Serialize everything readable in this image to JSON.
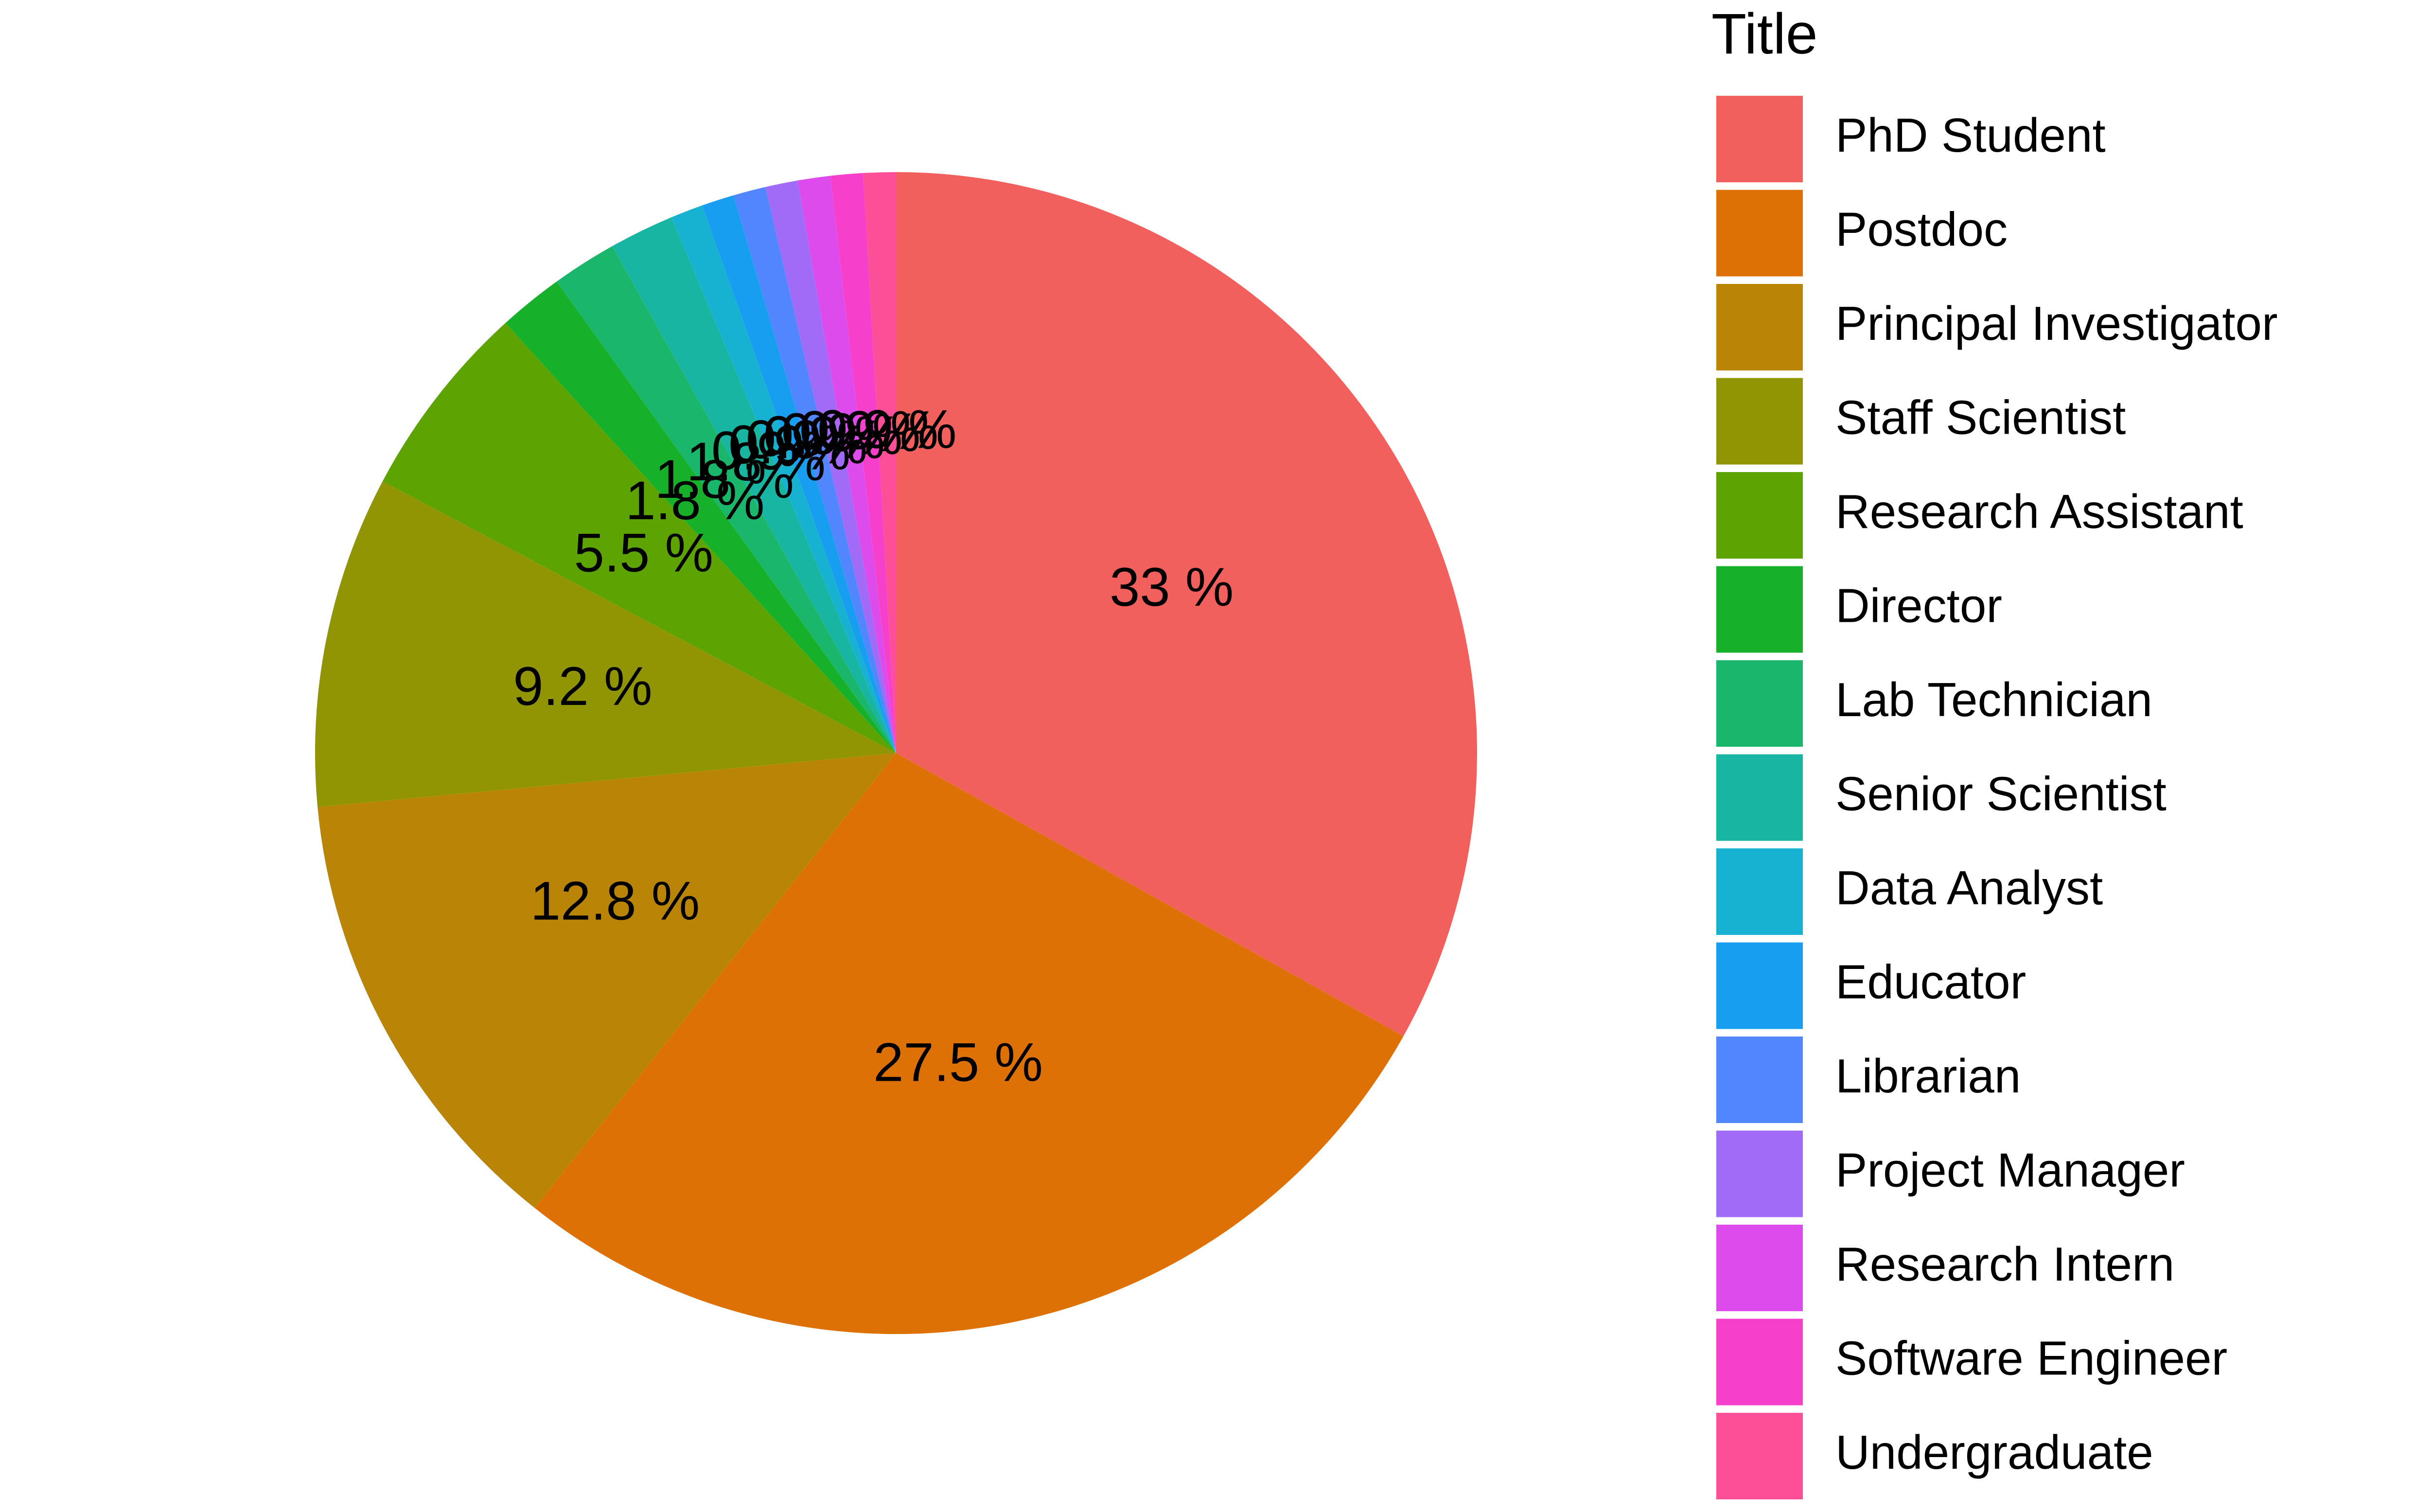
{
  "chart_data": {
    "type": "pie",
    "legend_title": "Title",
    "legend_position": "right",
    "start_angle_deg": 0,
    "direction": "clockwise",
    "units": "%",
    "slices": [
      {
        "name": "PhD Student",
        "value": 33.0,
        "label": "33 %",
        "color": "#F2605E"
      },
      {
        "name": "Postdoc",
        "value": 27.5,
        "label": "27.5 %",
        "color": "#DE7105"
      },
      {
        "name": "Principal Investigator",
        "value": 12.8,
        "label": "12.8 %",
        "color": "#BA8506"
      },
      {
        "name": "Staff Scientist",
        "value": 9.2,
        "label": "9.2 %",
        "color": "#929503"
      },
      {
        "name": "Research Assistant",
        "value": 5.5,
        "label": "5.5 %",
        "color": "#5DA402"
      },
      {
        "name": "Director",
        "value": 1.8,
        "label": "1.8 %",
        "color": "#17B02A"
      },
      {
        "name": "Lab Technician",
        "value": 1.8,
        "label": "1.8 %",
        "color": "#19B66C"
      },
      {
        "name": "Senior Scientist",
        "value": 1.8,
        "label": "1.8 %",
        "color": "#18B6A2"
      },
      {
        "name": "Data Analyst",
        "value": 0.9,
        "label": "0.9 %",
        "color": "#17B1D1"
      },
      {
        "name": "Educator",
        "value": 0.9,
        "label": "0.9 %",
        "color": "#189EF0"
      },
      {
        "name": "Librarian",
        "value": 0.9,
        "label": "0.9 %",
        "color": "#5286FF"
      },
      {
        "name": "Project Manager",
        "value": 0.9,
        "label": "0.9 %",
        "color": "#A26BF7"
      },
      {
        "name": "Research Intern",
        "value": 0.9,
        "label": "0.9 %",
        "color": "#DE4BED"
      },
      {
        "name": "Software Engineer",
        "value": 0.9,
        "label": "0.9 %",
        "color": "#F640CC"
      },
      {
        "name": "Undergraduate",
        "value": 0.9,
        "label": "0.9 %",
        "color": "#FC4F98"
      }
    ]
  }
}
